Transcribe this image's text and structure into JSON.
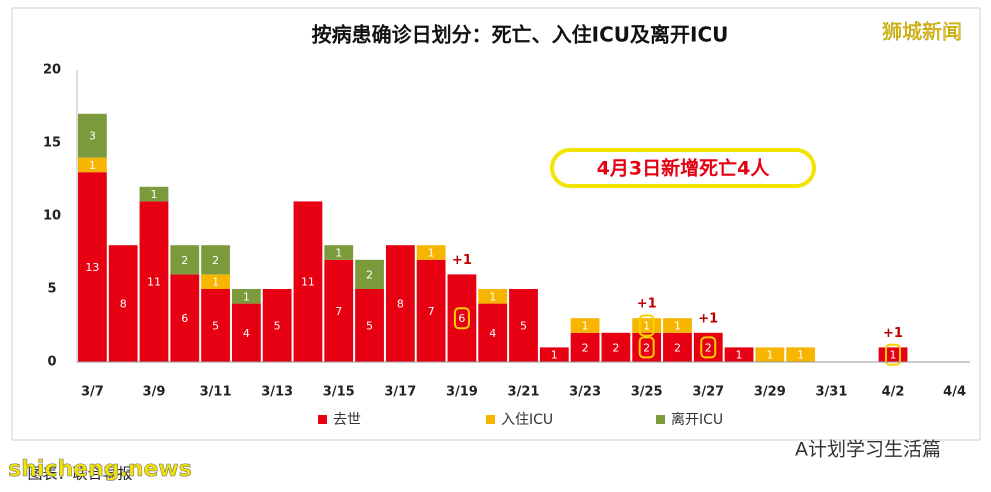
{
  "chart_data": {
    "type": "stacked-bar",
    "title": "按病患确诊日划分：死亡、入住ICU及离开ICU",
    "watermark": "狮城新闻",
    "callout": "4月3日新增死亡4人",
    "footer": "A计划学习生活篇",
    "source": "图表：联合早报",
    "site": "shicheng.news",
    "categories": [
      "3/7",
      null,
      "3/9",
      null,
      "3/11",
      null,
      "3/13",
      null,
      "3/15",
      null,
      "3/17",
      null,
      "3/19",
      null,
      "3/21",
      null,
      "3/23",
      null,
      "3/25",
      null,
      "3/27",
      null,
      "3/29",
      null,
      "3/31",
      null,
      "4/2",
      null,
      "4/4"
    ],
    "series": [
      {
        "name": "去世",
        "color": "#e60012",
        "values": [
          13,
          8,
          11,
          6,
          5,
          4,
          5,
          11,
          7,
          5,
          8,
          7,
          6,
          4,
          5,
          1,
          2,
          2,
          2,
          2,
          2,
          1,
          0,
          0,
          0,
          0,
          1,
          0,
          0
        ]
      },
      {
        "name": "入住ICU",
        "color": "#f7b500",
        "values": [
          1,
          0,
          0,
          0,
          1,
          0,
          0,
          0,
          0,
          0,
          0,
          1,
          0,
          1,
          0,
          0,
          1,
          0,
          1,
          1,
          0,
          0,
          1,
          1,
          0,
          0,
          0,
          0,
          0
        ]
      },
      {
        "name": "离开ICU",
        "color": "#7b9a3c",
        "values": [
          3,
          0,
          1,
          2,
          2,
          1,
          0,
          0,
          1,
          2,
          0,
          0,
          0,
          0,
          0,
          0,
          0,
          0,
          0,
          0,
          0,
          0,
          0,
          0,
          0,
          0,
          0,
          0,
          0
        ]
      }
    ],
    "highlight_indices": [
      12,
      18,
      20,
      26
    ],
    "annotations": [
      {
        "text": "+1",
        "index": 12
      },
      {
        "text": "+1",
        "index": 18
      },
      {
        "text": "+1",
        "index": 20
      },
      {
        "text": "+1",
        "index": 26
      }
    ],
    "ylim": [
      0,
      20
    ],
    "yticks": [
      0,
      5,
      10,
      15,
      20
    ],
    "grid": false,
    "legend": "bottom"
  }
}
